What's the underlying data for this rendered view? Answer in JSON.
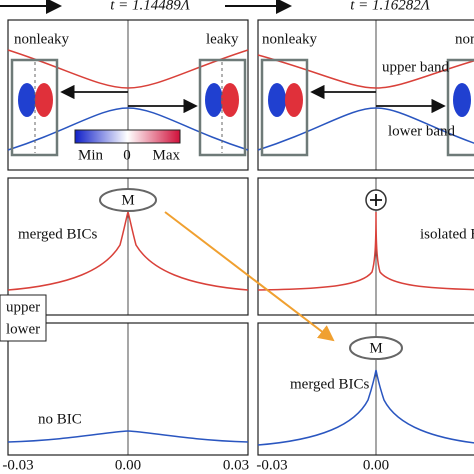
{
  "header": {
    "left_title": "t = 1.14489Λ",
    "right_title": "t = 1.16282Λ"
  },
  "top_left": {
    "nonleaky": "nonleaky",
    "leaky": "leaky",
    "colorbar": {
      "min": "Min",
      "zero": "0",
      "max": "Max"
    }
  },
  "top_right": {
    "nonleaky": "nonleaky",
    "upper_band": "upper band",
    "lower_band": "lower band"
  },
  "middle_left": {
    "marker": "M",
    "label": "merged BICs"
  },
  "middle_right": {
    "label": "isolated BIC"
  },
  "legend": {
    "upper": "upper",
    "lower": "lower"
  },
  "bottom_left": {
    "label": "no BIC"
  },
  "bottom_right": {
    "marker": "M",
    "label": "merged BICs"
  },
  "x_ticks_left": [
    "-0.03",
    "0.00",
    "0.03"
  ],
  "x_ticks_right": [
    "-0.03",
    "0.00"
  ]
}
